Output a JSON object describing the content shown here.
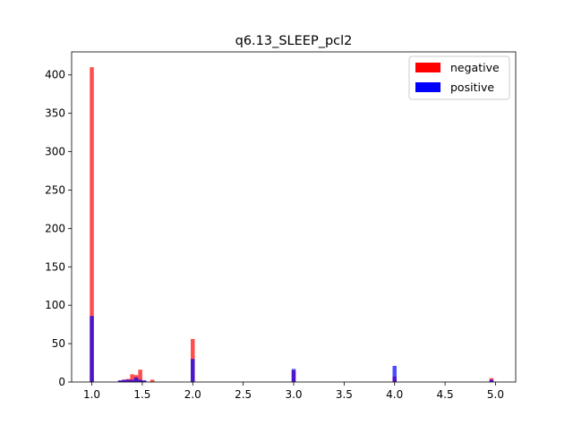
{
  "chart_data": {
    "type": "bar",
    "title": "q6.13_SLEEP_pcl2",
    "xlabel": "",
    "ylabel": "",
    "xlim": [
      0.8,
      5.2
    ],
    "ylim": [
      0,
      430
    ],
    "x_ticks": [
      "1.0",
      "1.5",
      "2.0",
      "2.5",
      "3.0",
      "3.5",
      "4.0",
      "4.5",
      "5.0"
    ],
    "y_ticks": [
      "0",
      "50",
      "100",
      "150",
      "200",
      "250",
      "300",
      "350",
      "400"
    ],
    "bin_width": 0.04,
    "legend_position": "top-right",
    "series": [
      {
        "name": "negative",
        "color": "#ff0000",
        "opacity": 0.7,
        "bins": [
          {
            "x": 1.0,
            "y": 410
          },
          {
            "x": 1.28,
            "y": 2
          },
          {
            "x": 1.32,
            "y": 3
          },
          {
            "x": 1.36,
            "y": 4
          },
          {
            "x": 1.4,
            "y": 10
          },
          {
            "x": 1.44,
            "y": 9
          },
          {
            "x": 1.48,
            "y": 16
          },
          {
            "x": 1.52,
            "y": 2
          },
          {
            "x": 1.6,
            "y": 3
          },
          {
            "x": 2.0,
            "y": 56
          },
          {
            "x": 3.0,
            "y": 15
          },
          {
            "x": 4.0,
            "y": 7
          },
          {
            "x": 4.96,
            "y": 5
          }
        ]
      },
      {
        "name": "positive",
        "color": "#0000ff",
        "opacity": 0.7,
        "bins": [
          {
            "x": 1.0,
            "y": 86
          },
          {
            "x": 1.28,
            "y": 2
          },
          {
            "x": 1.32,
            "y": 3
          },
          {
            "x": 1.36,
            "y": 3
          },
          {
            "x": 1.4,
            "y": 3
          },
          {
            "x": 1.44,
            "y": 6
          },
          {
            "x": 1.48,
            "y": 3
          },
          {
            "x": 1.52,
            "y": 2
          },
          {
            "x": 2.0,
            "y": 30
          },
          {
            "x": 3.0,
            "y": 17
          },
          {
            "x": 4.0,
            "y": 21
          },
          {
            "x": 4.96,
            "y": 3
          }
        ]
      }
    ]
  }
}
